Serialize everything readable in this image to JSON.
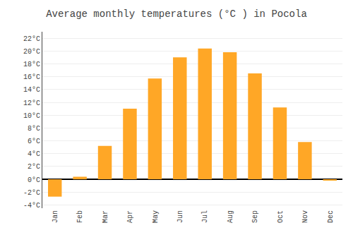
{
  "chart_data": {
    "type": "bar",
    "title": "Average monthly temperatures (°C ) in Pocola",
    "categories": [
      "Jan",
      "Feb",
      "Mar",
      "Apr",
      "May",
      "Jun",
      "Jul",
      "Aug",
      "Sep",
      "Oct",
      "Nov",
      "Dec"
    ],
    "values": [
      -2.7,
      0.4,
      5.2,
      11.0,
      15.7,
      19.0,
      20.4,
      19.8,
      16.5,
      11.2,
      5.8,
      -0.2
    ],
    "color": "#FFA726",
    "ylim": [
      -4.5,
      23
    ],
    "yticks": [
      {
        "value": -4,
        "label": "-4°C"
      },
      {
        "value": -2,
        "label": "-2°C"
      },
      {
        "value": 0,
        "label": "0°C"
      },
      {
        "value": 2,
        "label": "2°C"
      },
      {
        "value": 4,
        "label": "4°C"
      },
      {
        "value": 6,
        "label": "6°C"
      },
      {
        "value": 8,
        "label": "8°C"
      },
      {
        "value": 10,
        "label": "10°C"
      },
      {
        "value": 12,
        "label": "12°C"
      },
      {
        "value": 14,
        "label": "14°C"
      },
      {
        "value": 16,
        "label": "16°C"
      },
      {
        "value": 18,
        "label": "18°C"
      },
      {
        "value": 20,
        "label": "20°C"
      },
      {
        "value": 22,
        "label": "22°C"
      }
    ],
    "grid": true
  }
}
